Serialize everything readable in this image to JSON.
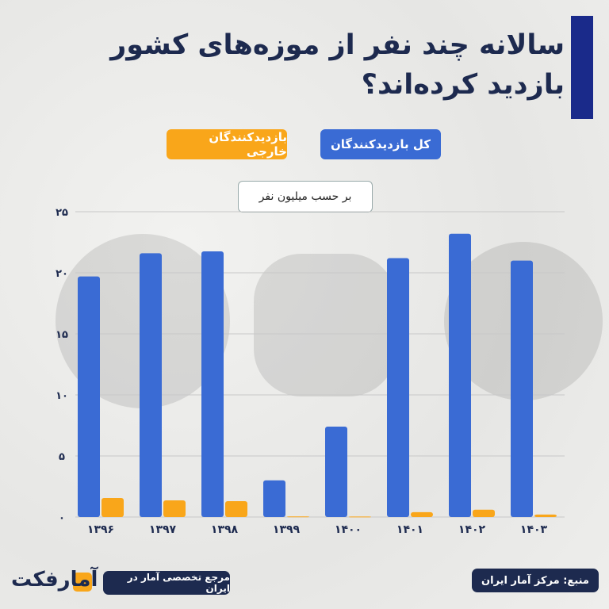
{
  "title": "سالانه چند نفر از موزه‌های کشور بازدید کرده‌اند؟",
  "colors": {
    "total": "#3a6bd4",
    "foreign": "#f9a61a",
    "navy": "#1d2a4f"
  },
  "footer": {
    "source": "منبع: مرکز آمار ایران",
    "tagline": "مرجع تخصصی آمار در ایران",
    "logo": "آمارفکت"
  },
  "chart_data": {
    "type": "bar",
    "unit_label": "بر حسب میلیون نفر",
    "categories": [
      "۱۳۹۶",
      "۱۳۹۷",
      "۱۳۹۸",
      "۱۳۹۹",
      "۱۴۰۰",
      "۱۴۰۱",
      "۱۴۰۲",
      "۱۴۰۳"
    ],
    "series": [
      {
        "name": "کل بازدیدکنندگان",
        "values": [
          19.7,
          21.6,
          21.75,
          3.0,
          7.4,
          21.2,
          23.2,
          21.0
        ]
      },
      {
        "name": "بازدیدکنندگان خارجی",
        "values": [
          1.56,
          1.36,
          1.3,
          0.05,
          0.04,
          0.4,
          0.6,
          0.2
        ]
      }
    ],
    "yticks": [
      "۰",
      "۵",
      "۱۰",
      "۱۵",
      "۲۰",
      "۲۵"
    ],
    "ylim": [
      0,
      25
    ],
    "grid": true,
    "legend": "top"
  }
}
